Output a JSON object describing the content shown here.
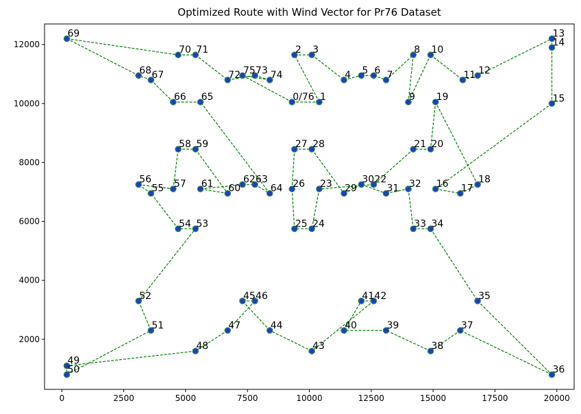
{
  "chart_data": {
    "type": "scatter",
    "title": "Optimized Route with Wind Vector for Pr76 Dataset",
    "xlabel": "",
    "ylabel": "",
    "xlim": [
      -700,
      20700
    ],
    "ylim": [
      300,
      12700
    ],
    "xticks": [
      0,
      2500,
      5000,
      7500,
      10000,
      12500,
      15000,
      17500,
      20000
    ],
    "yticks": [
      2000,
      4000,
      6000,
      8000,
      10000,
      12000
    ],
    "grid": false,
    "colors": {
      "route": "#008000",
      "marker_fill": "#1f3fbf",
      "marker_edge": "#2e8b57"
    },
    "nodes": [
      {
        "label": "0/76",
        "x": 9300,
        "y": 10050
      },
      {
        "label": "1",
        "x": 10400,
        "y": 10050
      },
      {
        "label": "2",
        "x": 9400,
        "y": 11650
      },
      {
        "label": "3",
        "x": 10100,
        "y": 11650
      },
      {
        "label": "4",
        "x": 11400,
        "y": 10800
      },
      {
        "label": "5",
        "x": 12100,
        "y": 10950
      },
      {
        "label": "6",
        "x": 12600,
        "y": 10950
      },
      {
        "label": "7",
        "x": 13100,
        "y": 10800
      },
      {
        "label": "8",
        "x": 14200,
        "y": 11650
      },
      {
        "label": "9",
        "x": 14000,
        "y": 10050
      },
      {
        "label": "10",
        "x": 14900,
        "y": 11650
      },
      {
        "label": "11",
        "x": 16200,
        "y": 10800
      },
      {
        "label": "12",
        "x": 16800,
        "y": 10950
      },
      {
        "label": "13",
        "x": 19800,
        "y": 12200
      },
      {
        "label": "14",
        "x": 19800,
        "y": 11900
      },
      {
        "label": "15",
        "x": 19800,
        "y": 10000
      },
      {
        "label": "16",
        "x": 15100,
        "y": 7100
      },
      {
        "label": "17",
        "x": 16100,
        "y": 6950
      },
      {
        "label": "18",
        "x": 16800,
        "y": 7250
      },
      {
        "label": "19",
        "x": 15100,
        "y": 10050
      },
      {
        "label": "20",
        "x": 14900,
        "y": 8450
      },
      {
        "label": "21",
        "x": 14200,
        "y": 8450
      },
      {
        "label": "22",
        "x": 12600,
        "y": 7250
      },
      {
        "label": "23",
        "x": 10400,
        "y": 7100
      },
      {
        "label": "24",
        "x": 10100,
        "y": 5750
      },
      {
        "label": "25",
        "x": 9400,
        "y": 5750
      },
      {
        "label": "26",
        "x": 9300,
        "y": 7100
      },
      {
        "label": "27",
        "x": 9400,
        "y": 8450
      },
      {
        "label": "28",
        "x": 10100,
        "y": 8450
      },
      {
        "label": "29",
        "x": 11400,
        "y": 6950
      },
      {
        "label": "30",
        "x": 12100,
        "y": 7250
      },
      {
        "label": "31",
        "x": 13100,
        "y": 6950
      },
      {
        "label": "32",
        "x": 14000,
        "y": 7100
      },
      {
        "label": "33",
        "x": 14200,
        "y": 5750
      },
      {
        "label": "34",
        "x": 14900,
        "y": 5750
      },
      {
        "label": "35",
        "x": 16800,
        "y": 3300
      },
      {
        "label": "36",
        "x": 19800,
        "y": 800
      },
      {
        "label": "37",
        "x": 16100,
        "y": 2300
      },
      {
        "label": "38",
        "x": 14900,
        "y": 1600
      },
      {
        "label": "39",
        "x": 13100,
        "y": 2300
      },
      {
        "label": "40",
        "x": 11400,
        "y": 2300
      },
      {
        "label": "41",
        "x": 12100,
        "y": 3300
      },
      {
        "label": "42",
        "x": 12600,
        "y": 3300
      },
      {
        "label": "43",
        "x": 10100,
        "y": 1600
      },
      {
        "label": "44",
        "x": 8400,
        "y": 2300
      },
      {
        "label": "45",
        "x": 7300,
        "y": 3300
      },
      {
        "label": "46",
        "x": 7800,
        "y": 3300
      },
      {
        "label": "47",
        "x": 6700,
        "y": 2300
      },
      {
        "label": "48",
        "x": 5400,
        "y": 1600
      },
      {
        "label": "49",
        "x": 200,
        "y": 1100
      },
      {
        "label": "50",
        "x": 200,
        "y": 800
      },
      {
        "label": "51",
        "x": 3600,
        "y": 2300
      },
      {
        "label": "52",
        "x": 3100,
        "y": 3300
      },
      {
        "label": "53",
        "x": 5400,
        "y": 5750
      },
      {
        "label": "54",
        "x": 4700,
        "y": 5750
      },
      {
        "label": "55",
        "x": 3600,
        "y": 6950
      },
      {
        "label": "56",
        "x": 3100,
        "y": 7250
      },
      {
        "label": "57",
        "x": 4500,
        "y": 7100
      },
      {
        "label": "58",
        "x": 4700,
        "y": 8450
      },
      {
        "label": "59",
        "x": 5400,
        "y": 8450
      },
      {
        "label": "60",
        "x": 6700,
        "y": 6950
      },
      {
        "label": "61",
        "x": 5600,
        "y": 7100
      },
      {
        "label": "62",
        "x": 7300,
        "y": 7250
      },
      {
        "label": "63",
        "x": 7800,
        "y": 7250
      },
      {
        "label": "64",
        "x": 8400,
        "y": 6950
      },
      {
        "label": "65",
        "x": 5600,
        "y": 10050
      },
      {
        "label": "66",
        "x": 4500,
        "y": 10050
      },
      {
        "label": "67",
        "x": 3600,
        "y": 10800
      },
      {
        "label": "68",
        "x": 3100,
        "y": 10950
      },
      {
        "label": "69",
        "x": 200,
        "y": 12200
      },
      {
        "label": "70",
        "x": 4700,
        "y": 11650
      },
      {
        "label": "71",
        "x": 5400,
        "y": 11650
      },
      {
        "label": "72",
        "x": 6700,
        "y": 10800
      },
      {
        "label": "73",
        "x": 7800,
        "y": 10950
      },
      {
        "label": "74",
        "x": 8400,
        "y": 10800
      },
      {
        "label": "75",
        "x": 7300,
        "y": 10950
      }
    ],
    "route": [
      "0/76",
      "1",
      "2",
      "3",
      "4",
      "5",
      "6",
      "7",
      "8",
      "9",
      "10",
      "11",
      "12",
      "13",
      "14",
      "15",
      "16",
      "17",
      "18",
      "19",
      "20",
      "21",
      "22",
      "23",
      "24",
      "25",
      "26",
      "27",
      "28",
      "29",
      "30",
      "31",
      "32",
      "33",
      "34",
      "35",
      "36",
      "37",
      "38",
      "39",
      "40",
      "41",
      "42",
      "43",
      "44",
      "45",
      "46",
      "47",
      "48",
      "49",
      "50",
      "51",
      "52",
      "53",
      "54",
      "55",
      "56",
      "57",
      "58",
      "59",
      "60",
      "61",
      "62",
      "63",
      "64",
      "65",
      "66",
      "67",
      "68",
      "69",
      "70",
      "71",
      "72",
      "73",
      "74",
      "75",
      "0/76"
    ]
  }
}
